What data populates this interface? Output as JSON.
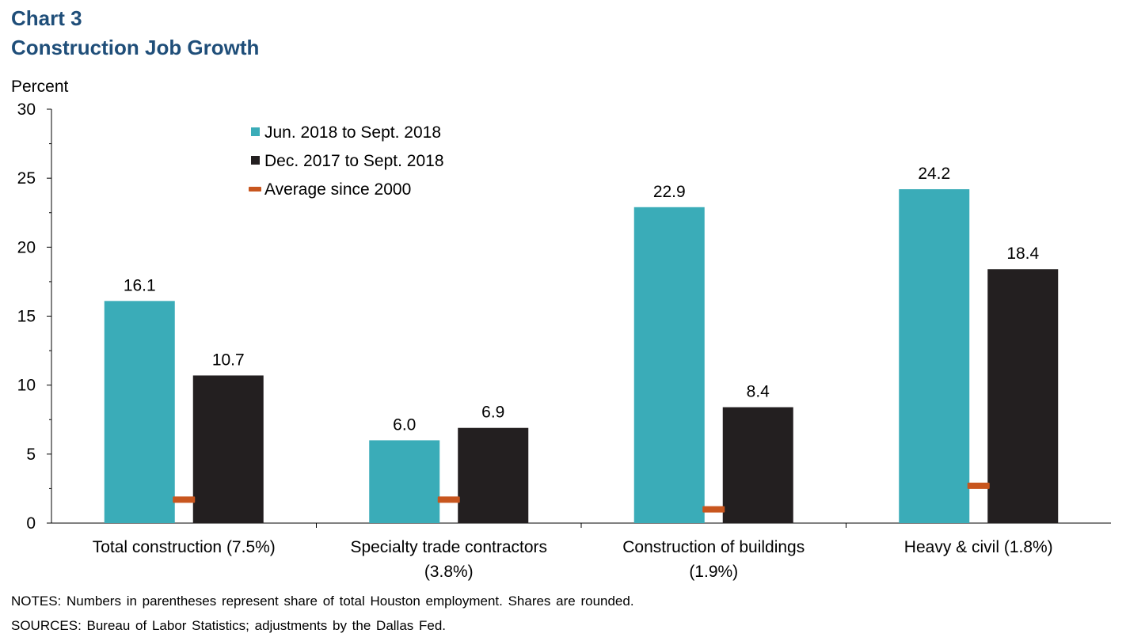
{
  "chart_data": {
    "type": "bar",
    "label": "Chart 3",
    "title": "Construction Job Growth",
    "ylabel": "Percent",
    "ylim": [
      0,
      30
    ],
    "yticks": [
      0,
      5,
      10,
      15,
      20,
      25,
      30
    ],
    "categories": [
      [
        "Total construction (7.5%)"
      ],
      [
        "Specialty trade contractors",
        "(3.8%)"
      ],
      [
        "Construction of buildings",
        "(1.9%)"
      ],
      [
        "Heavy & civil (1.8%)"
      ]
    ],
    "series": [
      {
        "name": "Jun. 2018 to Sept. 2018",
        "kind": "bar",
        "color": "#3aacb8",
        "values": [
          16.1,
          6.0,
          22.9,
          24.2
        ]
      },
      {
        "name": "Dec. 2017 to Sept. 2018",
        "kind": "bar",
        "color": "#231f20",
        "values": [
          10.7,
          6.9,
          8.4,
          18.4
        ]
      },
      {
        "name": "Average since 2000",
        "kind": "marker",
        "color": "#c8561e",
        "values": [
          1.7,
          1.7,
          1.0,
          2.7
        ]
      }
    ],
    "data_labels": true,
    "legend_position": "top-center",
    "grid": false
  },
  "notes": "NOTES: Numbers in parentheses represent share of total Houston employment. Shares are rounded.",
  "sources": "SOURCES: Bureau of Labor Statistics; adjustments by the Dallas Fed."
}
